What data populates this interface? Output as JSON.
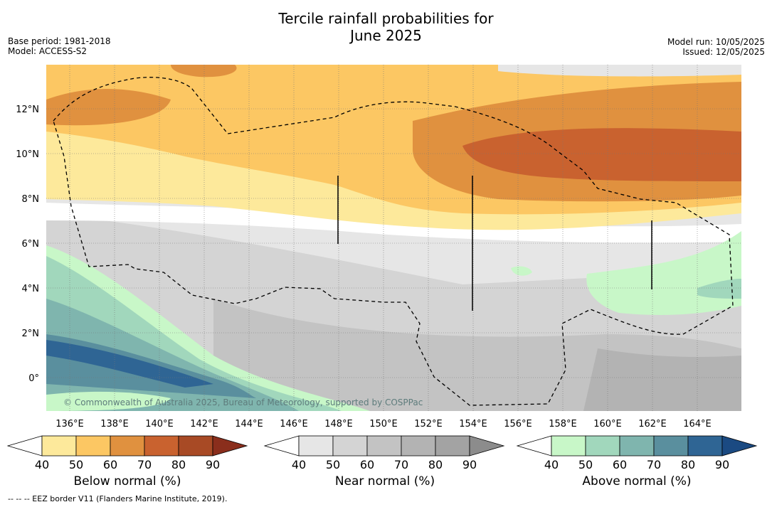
{
  "header": {
    "title_line1": "Tercile rainfall probabilities for",
    "title_line2": "June 2025",
    "base_period": "Base period: 1981-2018",
    "model": "Model: ACCESS-S2",
    "model_run": "Model run: 10/05/2025",
    "issued": "Issued: 12/05/2025"
  },
  "map": {
    "x_ticks": [
      "136°E",
      "138°E",
      "140°E",
      "142°E",
      "144°E",
      "146°E",
      "148°E",
      "150°E",
      "152°E",
      "154°E",
      "156°E",
      "158°E",
      "160°E",
      "162°E",
      "164°E"
    ],
    "y_ticks": [
      "12°N",
      "10°N",
      "8°N",
      "6°N",
      "4°N",
      "2°N",
      "0°"
    ],
    "copyright": "© Commonwealth of Australia 2025, Bureau of Meteorology, supported by COSPPac"
  },
  "colorbars": [
    {
      "label": "Below normal (%)",
      "ticks": [
        "40",
        "50",
        "60",
        "70",
        "80",
        "90"
      ],
      "colors": [
        "#ffffff",
        "#fde99b",
        "#fcc763",
        "#e0913f",
        "#c9622f",
        "#a84a25",
        "#8a2e1c"
      ]
    },
    {
      "label": "Near normal (%)",
      "ticks": [
        "40",
        "50",
        "60",
        "70",
        "80",
        "90"
      ],
      "colors": [
        "#ffffff",
        "#e6e6e6",
        "#d4d4d4",
        "#c3c3c3",
        "#b3b3b3",
        "#a3a3a3",
        "#8c8c8c"
      ]
    },
    {
      "label": "Above normal (%)",
      "ticks": [
        "40",
        "50",
        "60",
        "70",
        "80",
        "90"
      ],
      "colors": [
        "#ffffff",
        "#c8f7c8",
        "#a1d7bc",
        "#7fb5ae",
        "#5a8f9e",
        "#2f6594",
        "#1b4a82"
      ]
    }
  ],
  "footnote": "-- -- -- EEZ border V11 (Flanders Marine Institute, 2019)."
}
